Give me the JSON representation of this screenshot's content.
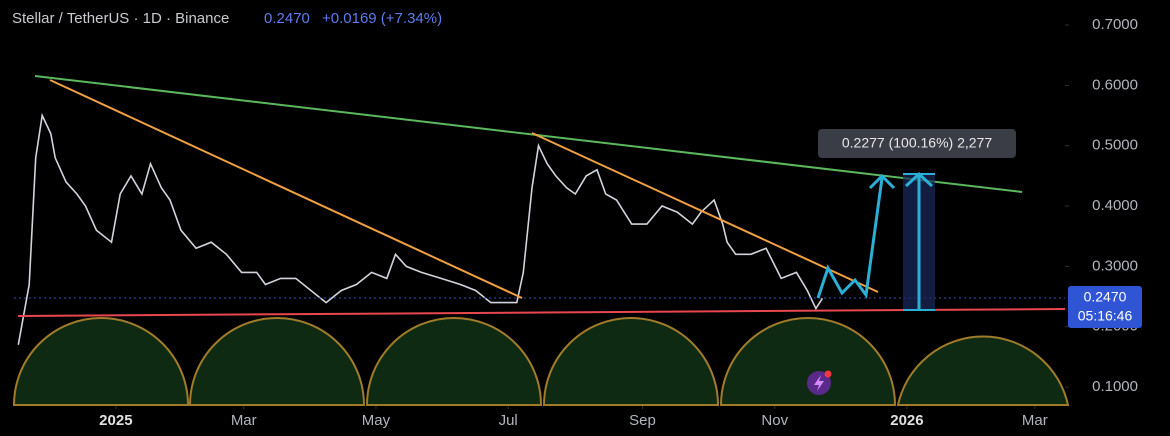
{
  "chart_data": {
    "type": "line",
    "title": "Stellar / TetherUS · 1D · Binance",
    "price": "0.2470",
    "change": "+0.0169 (+7.34%)",
    "countdown": "05:16:46",
    "annotation": "0.2277 (100.16%) 2,277",
    "color": "#d1d4dc",
    "x": [
      -45,
      -40,
      -37,
      -34,
      -30,
      -28,
      -23,
      -18,
      -14,
      -9,
      -2,
      2,
      7,
      12,
      16,
      21,
      25,
      30,
      37,
      44,
      51,
      58,
      65,
      69,
      76,
      83,
      90,
      97,
      104,
      111,
      118,
      125,
      129,
      134,
      141,
      150,
      159,
      166,
      173,
      180,
      185,
      188,
      192,
      195,
      199,
      203,
      208,
      212,
      217,
      222,
      226,
      231,
      238,
      245,
      252,
      259,
      266,
      270,
      276,
      280,
      282,
      286,
      293,
      300,
      307,
      314,
      319,
      323,
      326
    ],
    "values": [
      0.17,
      0.27,
      0.48,
      0.55,
      0.52,
      0.48,
      0.44,
      0.42,
      0.4,
      0.36,
      0.34,
      0.42,
      0.45,
      0.42,
      0.47,
      0.43,
      0.41,
      0.36,
      0.33,
      0.34,
      0.32,
      0.29,
      0.29,
      0.27,
      0.28,
      0.28,
      0.26,
      0.24,
      0.26,
      0.27,
      0.29,
      0.28,
      0.32,
      0.3,
      0.29,
      0.28,
      0.27,
      0.26,
      0.24,
      0.24,
      0.24,
      0.29,
      0.43,
      0.5,
      0.47,
      0.45,
      0.43,
      0.42,
      0.45,
      0.46,
      0.42,
      0.41,
      0.37,
      0.37,
      0.4,
      0.39,
      0.37,
      0.39,
      0.41,
      0.37,
      0.34,
      0.32,
      0.32,
      0.33,
      0.28,
      0.29,
      0.26,
      0.23,
      0.247
    ],
    "xlim": [
      -47,
      437
    ],
    "ylim": [
      0.0702,
      0.7415
    ],
    "xticks": [
      {
        "value": 0,
        "label": "2025"
      },
      {
        "value": 59,
        "label": "Mar"
      },
      {
        "value": 120,
        "label": "May"
      },
      {
        "value": 181,
        "label": "Jul"
      },
      {
        "value": 243,
        "label": "Sep"
      },
      {
        "value": 304,
        "label": "Nov"
      },
      {
        "value": 365,
        "label": "2026"
      },
      {
        "value": 424,
        "label": "Mar"
      }
    ],
    "yticks": [
      {
        "value": 0.1,
        "label": "0.1000"
      },
      {
        "value": 0.2,
        "label": "0.2000"
      },
      {
        "value": 0.3,
        "label": "0.3000"
      },
      {
        "value": 0.4,
        "label": "0.4000"
      },
      {
        "value": 0.5,
        "label": "0.5000"
      },
      {
        "value": 0.6,
        "label": "0.6000"
      },
      {
        "value": 0.7,
        "label": "0.7000"
      }
    ]
  }
}
